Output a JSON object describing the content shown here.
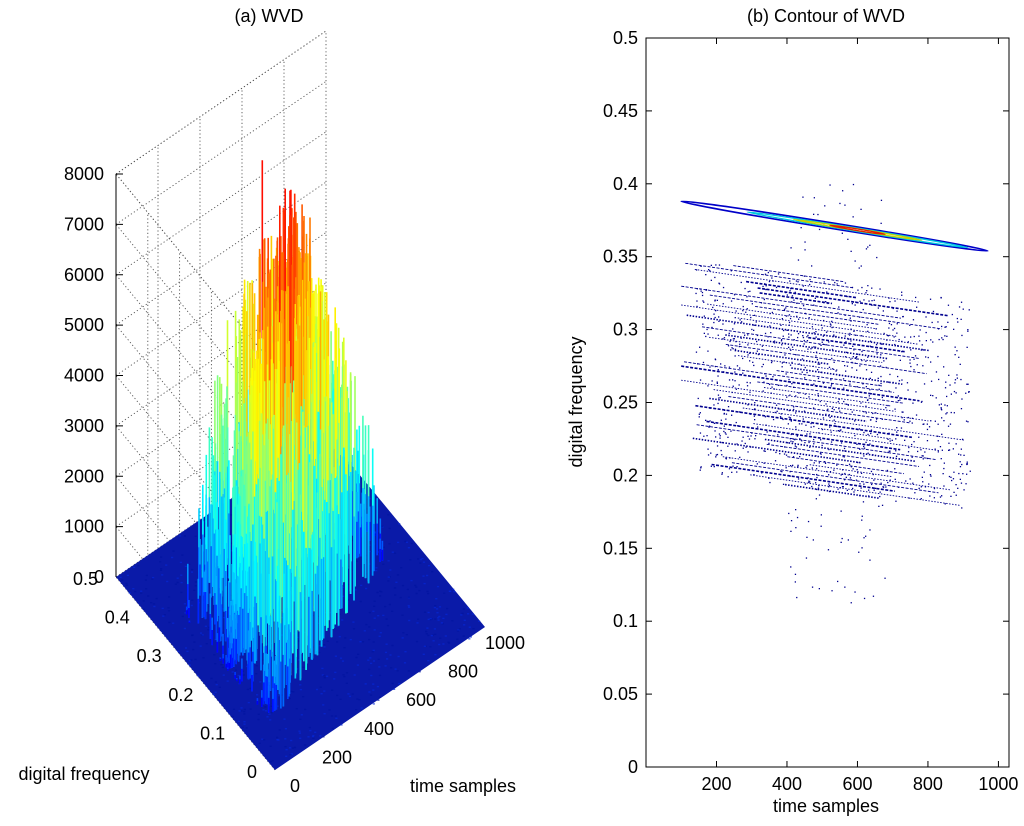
{
  "chart_data": [
    {
      "type": "surface3d",
      "title": "(a) WVD",
      "xlabel": "time samples",
      "ylabel": "digital frequency",
      "zlabel": "",
      "x_ticks": [
        "0",
        "200",
        "400",
        "600",
        "800",
        "1000"
      ],
      "y_ticks": [
        "0",
        "0.1",
        "0.2",
        "0.3",
        "0.4",
        "0.5"
      ],
      "z_ticks": [
        "0",
        "1000",
        "2000",
        "3000",
        "4000",
        "5000",
        "6000",
        "7000",
        "8000"
      ],
      "xlim": [
        0,
        1000
      ],
      "ylim": [
        0,
        0.5
      ],
      "zlim": [
        0,
        8000
      ],
      "grid": true,
      "colormap": "jet",
      "colormap_stops": [
        "#00008f",
        "#0000ff",
        "#00a0ff",
        "#00ffff",
        "#80ff80",
        "#ffff00",
        "#ff8000",
        "#ff0000"
      ],
      "surface_ridge": {
        "peak_value": 7850,
        "peak_time": 500,
        "peak_frequency": 0.37,
        "frequency_at_time_0": 0.2,
        "frequency_at_time_1000": 0.39,
        "baseline_value": 0
      }
    },
    {
      "type": "contour",
      "title": "(b) Contour of WVD",
      "xlabel": "time samples",
      "ylabel": "digital frequency",
      "x_ticks": [
        "200",
        "400",
        "600",
        "800",
        "1000"
      ],
      "y_ticks": [
        "0",
        "0.05",
        "0.1",
        "0.15",
        "0.2",
        "0.25",
        "0.3",
        "0.35",
        "0.4",
        "0.45",
        "0.5"
      ],
      "xlim": [
        0,
        1030
      ],
      "ylim": [
        0,
        0.5
      ],
      "box": true,
      "main_ridge": {
        "from": [
          100,
          0.388
        ],
        "to": [
          970,
          0.354
        ],
        "peak_at": 600
      },
      "chirp_band": {
        "time_range": [
          100,
          960
        ],
        "frequency_range": [
          0.19,
          0.335
        ],
        "slope_per_sample": -3.52e-05,
        "line_color": "#00008f"
      },
      "scatter_range": {
        "time_range": [
          400,
          680
        ],
        "frequency_range": [
          0.11,
          0.4
        ]
      }
    }
  ]
}
